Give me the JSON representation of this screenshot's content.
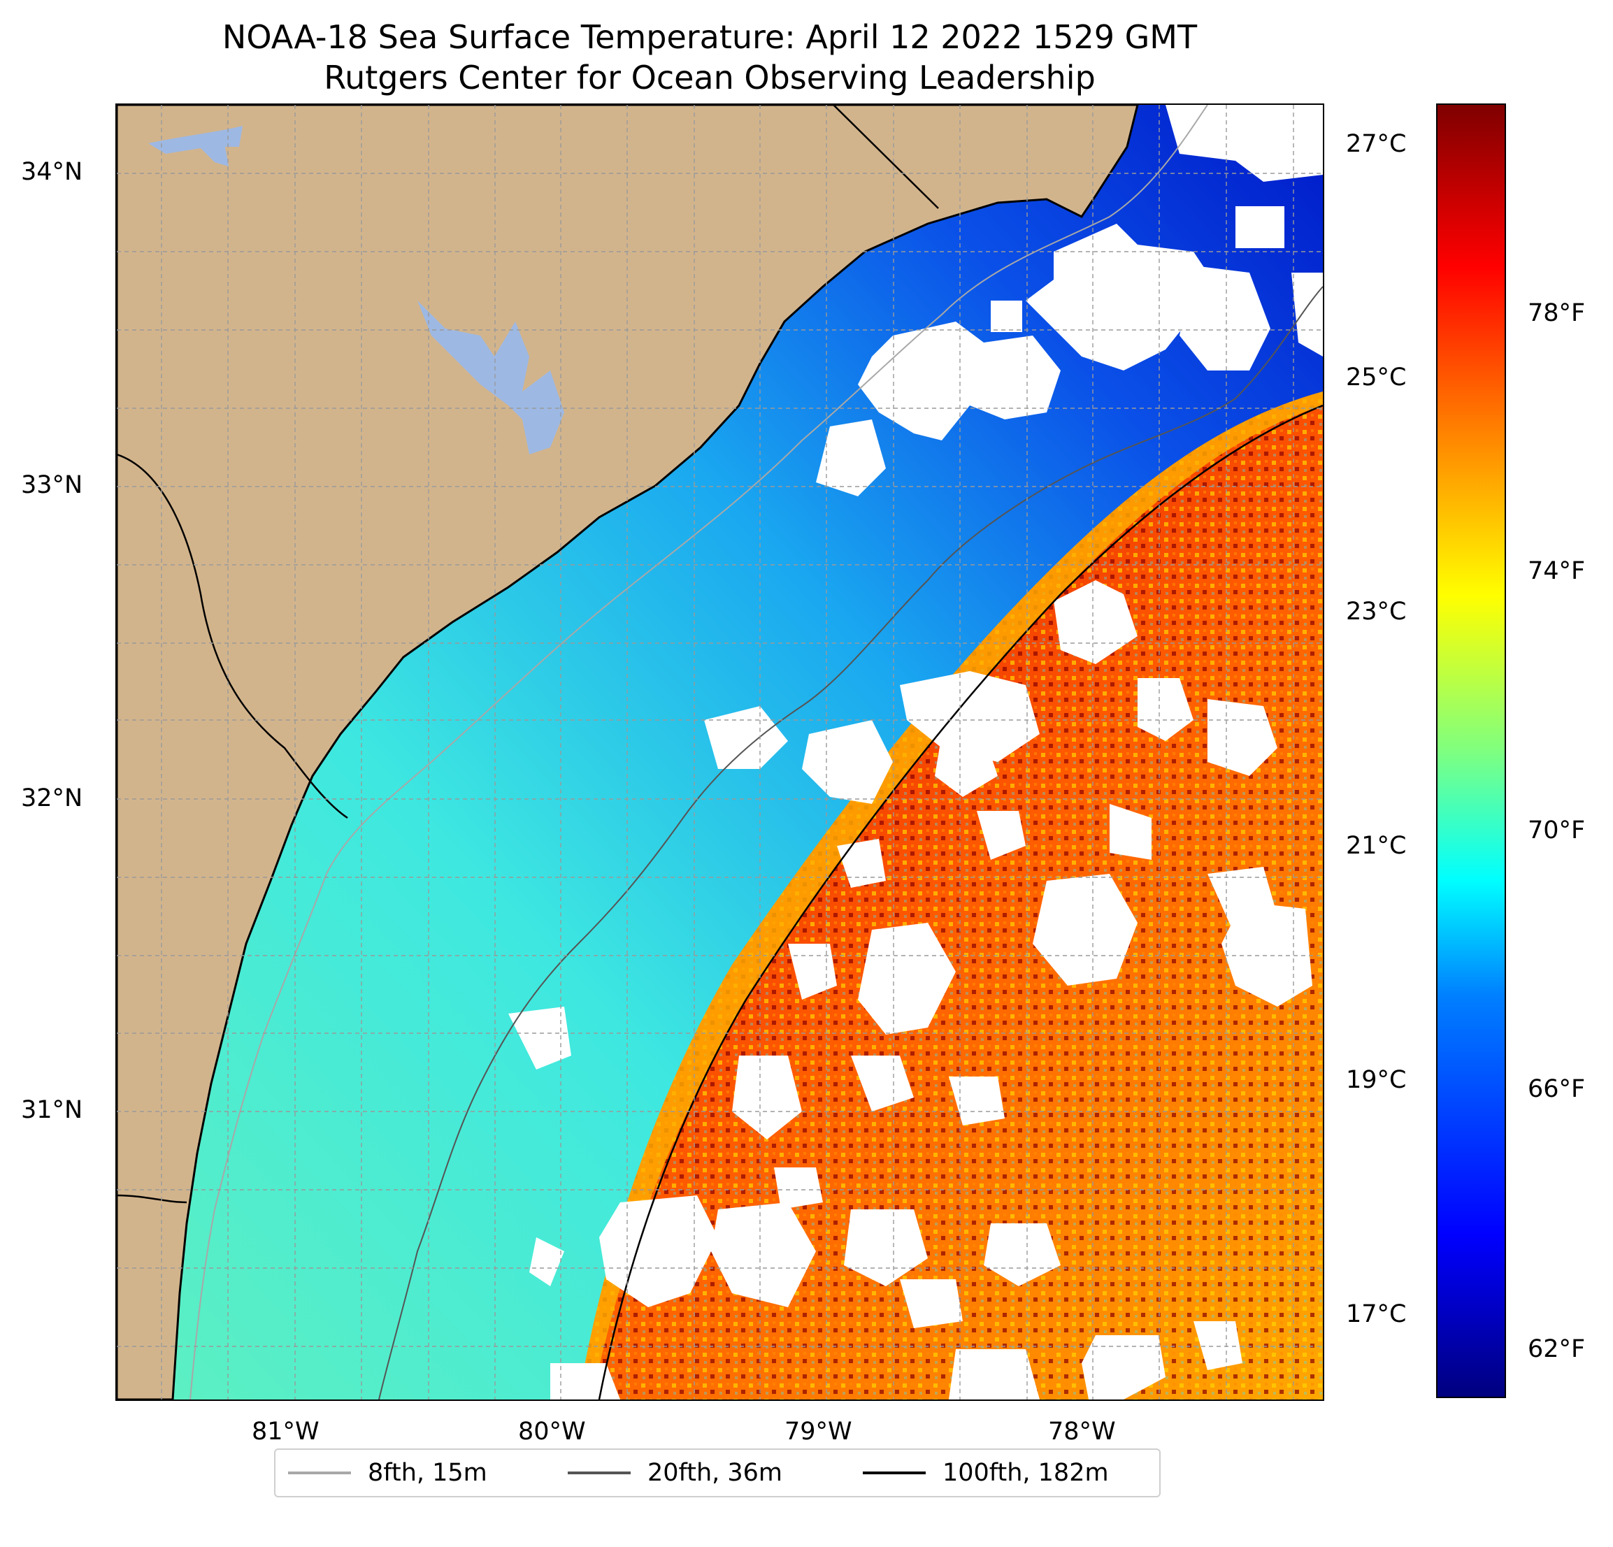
{
  "title": {
    "line1": "NOAA-18 Sea Surface Temperature: April 12 2022 1529 GMT",
    "line2": "Rutgers Center for Ocean Observing Leadership"
  },
  "map": {
    "lat_labels": [
      "34°N",
      "33°N",
      "32°N",
      "31°N"
    ],
    "lon_labels": [
      "81°W",
      "80°W",
      "79°W",
      "78°W"
    ],
    "colors": {
      "land": "#d2b48c",
      "lakes": "#9db8e3",
      "no_data": "#ffffff",
      "coastline": "#000000",
      "grid": "#9a9a9a"
    }
  },
  "colorbar": {
    "celsius_labels": [
      "27°C",
      "25°C",
      "23°C",
      "21°C",
      "19°C",
      "17°C"
    ],
    "fahrenheit_labels": [
      "78°F",
      "74°F",
      "70°F",
      "66°F",
      "62°F"
    ],
    "colormap": "jet"
  },
  "legend": {
    "items": [
      {
        "label": "8fth, 15m",
        "color": "#a8a8a8"
      },
      {
        "label": "20fth, 36m",
        "color": "#555555"
      },
      {
        "label": "100fth, 182m",
        "color": "#000000"
      }
    ]
  }
}
